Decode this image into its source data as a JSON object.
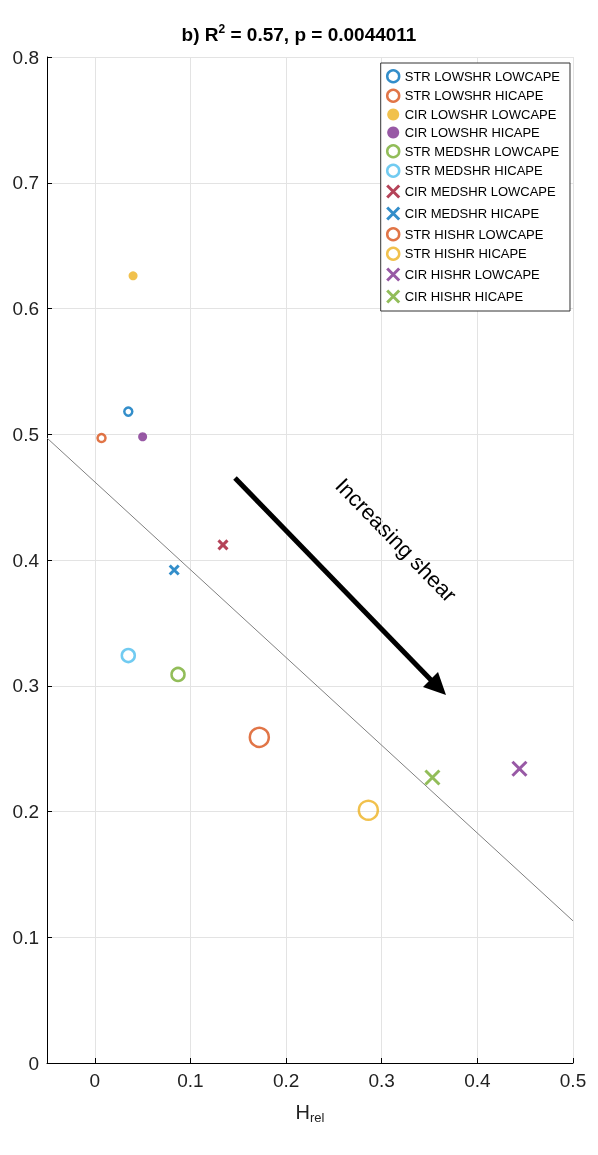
{
  "chart_data": {
    "type": "scatter",
    "title": "b) R$^{2}$ = 0.57, p = 0.0044011",
    "xlabel": "H$_{rel}$",
    "xlim": [
      -0.05,
      0.5
    ],
    "xticks": [
      0,
      0.1,
      0.2,
      0.3,
      0.4,
      0.5
    ],
    "ylim": [
      0,
      0.8
    ],
    "yticks": [
      0,
      0.1,
      0.2,
      0.3,
      0.4,
      0.5,
      0.6,
      0.7,
      0.8
    ],
    "grid": true,
    "legend": "top right",
    "annotations": [
      "Increasing shear"
    ],
    "series": [
      {
        "name": "STR LOWSHR LOWCAPE",
        "color": "#0072bd",
        "marker": "circle",
        "x": [
          0.035
        ],
        "values": [
          0.518
        ]
      },
      {
        "name": "STR LOWSHR HICAPE",
        "color": "#d95319",
        "marker": "circle",
        "x": [
          0.007
        ],
        "values": [
          0.497
        ]
      },
      {
        "name": "CIR LOWSHR LOWCAPE",
        "color": "#edb120",
        "marker": "circle",
        "x": [
          0.04
        ],
        "values": [
          0.626
        ]
      },
      {
        "name": "CIR LOWSHR HICAPE",
        "color": "#7e2f8e",
        "marker": "circle",
        "x": [
          0.05
        ],
        "values": [
          0.498
        ]
      },
      {
        "name": "STR MEDSHR LOWCAPE",
        "color": "#77ac30",
        "marker": "circle",
        "x": [
          0.087
        ],
        "values": [
          0.309
        ]
      },
      {
        "name": "STR MEDSHR HICAPE",
        "color": "#4dbeee",
        "marker": "circle",
        "x": [
          0.035
        ],
        "values": [
          0.324
        ]
      },
      {
        "name": "CIR MEDSHR LOWCAPE",
        "color": "#a2142f",
        "marker": "cross",
        "x": [
          0.134
        ],
        "values": [
          0.412
        ]
      },
      {
        "name": "CIR MEDSHR HICAPE",
        "color": "#0072bd",
        "marker": "cross",
        "x": [
          0.083
        ],
        "values": [
          0.392
        ]
      },
      {
        "name": "STR HISHR LOWCAPE",
        "color": "#d95319",
        "marker": "circle",
        "x": [
          0.172
        ],
        "values": [
          0.259
        ]
      },
      {
        "name": "STR HISHR HICAPE",
        "color": "#edb120",
        "marker": "circle",
        "x": [
          0.286
        ],
        "values": [
          0.201
        ]
      },
      {
        "name": "CIR HISHR LOWCAPE",
        "color": "#7e2f8e",
        "marker": "cross",
        "x": [
          0.444
        ],
        "values": [
          0.234
        ]
      },
      {
        "name": "CIR HISHR HICAPE",
        "color": "#77ac30",
        "marker": "cross",
        "x": [
          0.353
        ],
        "values": [
          0.227
        ]
      },
      {
        "type": "line",
        "color": "#808080",
        "marker": "none",
        "x": [
          -0.05,
          0.5
        ],
        "values": [
          0.497,
          0.113
        ]
      }
    ]
  }
}
